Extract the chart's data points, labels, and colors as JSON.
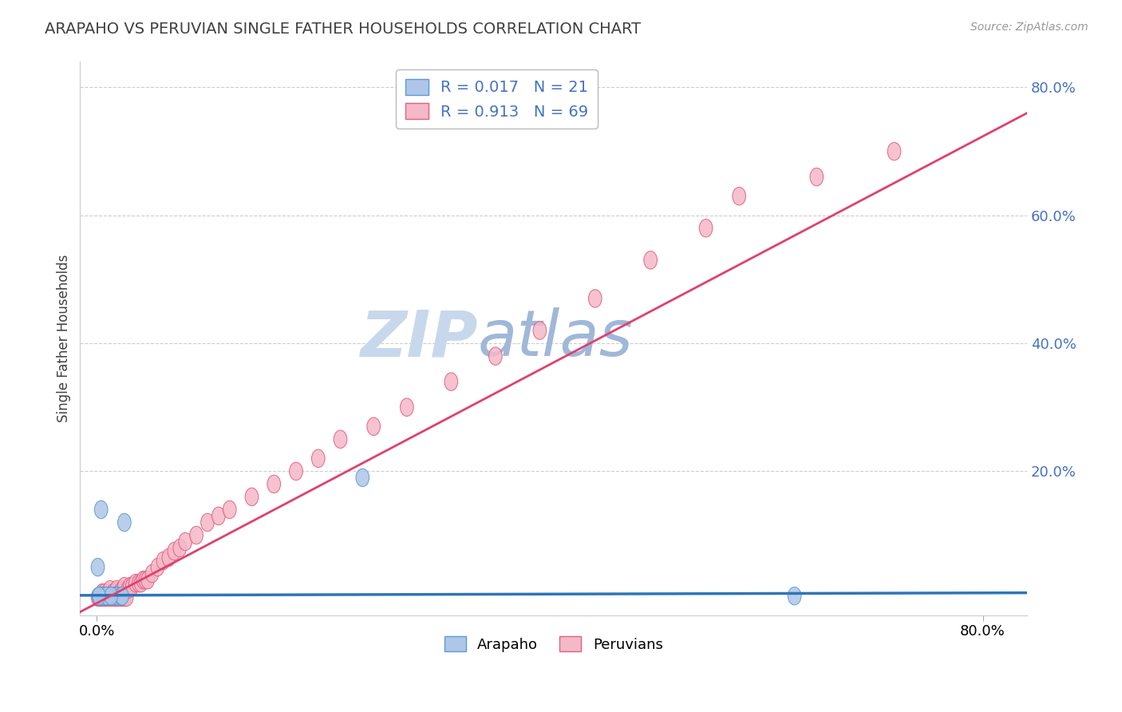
{
  "title": "ARAPAHO VS PERUVIAN SINGLE FATHER HOUSEHOLDS CORRELATION CHART",
  "source": "Source: ZipAtlas.com",
  "ylabel": "Single Father Households",
  "xlabel": "",
  "arapaho_R": 0.017,
  "arapaho_N": 21,
  "peruvian_R": 0.913,
  "peruvian_N": 69,
  "arapaho_color": "#AEC6E8",
  "arapaho_edge_color": "#5B9BD5",
  "arapaho_line_color": "#2E75B6",
  "peruvian_color": "#F5B8C8",
  "peruvian_edge_color": "#E06080",
  "peruvian_line_color": "#E04070",
  "background_color": "#FFFFFF",
  "grid_color": "#C8C8C8",
  "title_color": "#404040",
  "watermark_color_zip": "#C8D8EC",
  "watermark_color_atlas": "#A0B8D8",
  "legend_label_arapaho": "Arapaho",
  "legend_label_peruvian": "Peruvians",
  "legend_R_color": "#4472C4",
  "axis_tick_color": "#4472C4",
  "arapaho_x": [
    0.002,
    0.004,
    0.005,
    0.007,
    0.008,
    0.01,
    0.012,
    0.015,
    0.018,
    0.019,
    0.022,
    0.023,
    0.025,
    0.003,
    0.006,
    0.009,
    0.013,
    0.002,
    0.001,
    0.24,
    0.63
  ],
  "arapaho_y": [
    0.005,
    0.14,
    0.005,
    0.005,
    0.005,
    0.005,
    0.005,
    0.005,
    0.005,
    0.005,
    0.005,
    0.005,
    0.12,
    0.005,
    0.005,
    0.005,
    0.005,
    0.005,
    0.05,
    0.19,
    0.005
  ],
  "peruvian_x": [
    0.001,
    0.002,
    0.003,
    0.004,
    0.005,
    0.005,
    0.006,
    0.007,
    0.007,
    0.008,
    0.009,
    0.01,
    0.01,
    0.011,
    0.012,
    0.012,
    0.013,
    0.014,
    0.015,
    0.015,
    0.016,
    0.017,
    0.018,
    0.018,
    0.019,
    0.02,
    0.021,
    0.022,
    0.023,
    0.024,
    0.025,
    0.025,
    0.027,
    0.028,
    0.03,
    0.032,
    0.035,
    0.038,
    0.04,
    0.042,
    0.044,
    0.046,
    0.05,
    0.055,
    0.06,
    0.065,
    0.07,
    0.075,
    0.08,
    0.09,
    0.1,
    0.11,
    0.12,
    0.14,
    0.16,
    0.18,
    0.2,
    0.22,
    0.25,
    0.28,
    0.32,
    0.36,
    0.4,
    0.45,
    0.5,
    0.55,
    0.58,
    0.65,
    0.72
  ],
  "peruvian_y": [
    0.003,
    0.003,
    0.003,
    0.003,
    0.003,
    0.01,
    0.003,
    0.003,
    0.01,
    0.003,
    0.003,
    0.003,
    0.01,
    0.003,
    0.003,
    0.015,
    0.003,
    0.003,
    0.003,
    0.01,
    0.003,
    0.01,
    0.003,
    0.015,
    0.003,
    0.003,
    0.01,
    0.003,
    0.015,
    0.003,
    0.003,
    0.02,
    0.003,
    0.015,
    0.02,
    0.02,
    0.025,
    0.025,
    0.025,
    0.03,
    0.03,
    0.03,
    0.04,
    0.05,
    0.06,
    0.065,
    0.075,
    0.08,
    0.09,
    0.1,
    0.12,
    0.13,
    0.14,
    0.16,
    0.18,
    0.2,
    0.22,
    0.25,
    0.27,
    0.3,
    0.34,
    0.38,
    0.42,
    0.47,
    0.53,
    0.58,
    0.63,
    0.66,
    0.7
  ],
  "xlim": [
    -0.015,
    0.84
  ],
  "ylim": [
    -0.025,
    0.84
  ],
  "x_tick_positions": [
    0.0,
    0.8
  ],
  "x_tick_labels": [
    "0.0%",
    "80.0%"
  ],
  "y_tick_positions": [
    0.2,
    0.4,
    0.6,
    0.8
  ],
  "y_tick_labels": [
    "20.0%",
    "40.0%",
    "60.0%",
    "80.0%"
  ],
  "arapaho_trend_x": [
    -0.015,
    0.84
  ],
  "arapaho_trend_y": [
    0.006,
    0.01
  ],
  "peruvian_trend_x": [
    -0.015,
    0.84
  ],
  "peruvian_trend_y": [
    -0.02,
    0.76
  ]
}
